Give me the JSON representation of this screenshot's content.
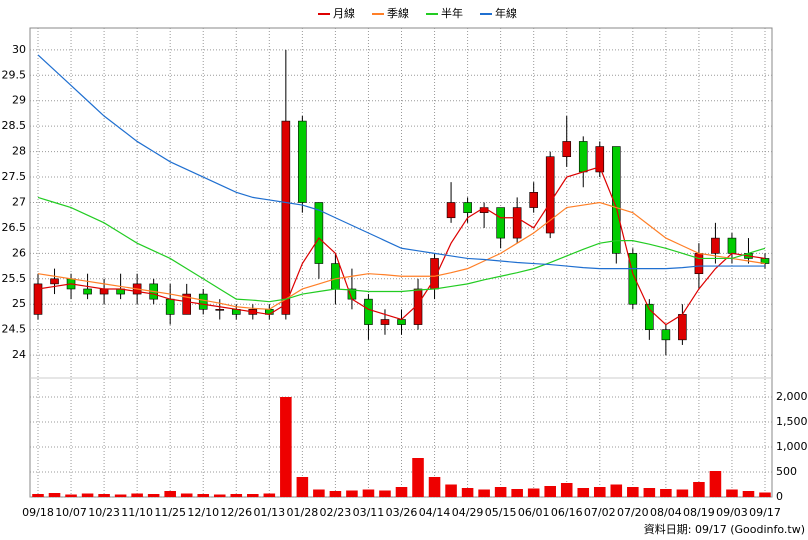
{
  "chart_data": {
    "type": "candlestick",
    "categories": [
      "09/18",
      null,
      "10/07",
      null,
      "10/23",
      null,
      "11/10",
      null,
      "11/25",
      null,
      "12/10",
      null,
      "12/26",
      null,
      "01/13",
      null,
      "01/28",
      null,
      "02/23",
      null,
      "03/11",
      null,
      "03/26",
      null,
      "04/14",
      null,
      "04/29",
      null,
      "05/15",
      null,
      "06/01",
      null,
      "06/16",
      null,
      "07/02",
      null,
      "07/20",
      null,
      "08/04",
      null,
      "08/19",
      null,
      "09/03",
      null,
      "09/17"
    ],
    "open": [
      24.8,
      25.4,
      25.5,
      25.3,
      25.2,
      25.3,
      25.2,
      25.4,
      25.1,
      24.8,
      25.2,
      24.9,
      24.9,
      24.8,
      24.9,
      24.8,
      28.6,
      27.0,
      25.8,
      25.3,
      25.1,
      24.6,
      24.7,
      24.6,
      25.3,
      26.7,
      27.0,
      26.8,
      26.9,
      26.3,
      26.9,
      26.4,
      27.9,
      28.2,
      27.6,
      28.1,
      26.0,
      25.0,
      24.5,
      24.3,
      25.6,
      26.0,
      26.3,
      26.0,
      25.9
    ],
    "high": [
      25.6,
      25.7,
      25.6,
      25.6,
      25.5,
      25.6,
      25.6,
      25.5,
      25.4,
      25.4,
      25.3,
      25.1,
      25.0,
      25.0,
      25.0,
      30.0,
      28.7,
      27.0,
      26.0,
      25.7,
      25.2,
      24.9,
      24.9,
      25.5,
      26.0,
      27.4,
      27.1,
      27.0,
      26.9,
      27.1,
      27.4,
      28.0,
      28.7,
      28.3,
      28.2,
      28.1,
      26.1,
      25.1,
      24.6,
      25.0,
      26.2,
      26.6,
      26.4,
      26.3,
      26.0
    ],
    "low": [
      24.7,
      25.2,
      25.1,
      25.1,
      25.0,
      25.1,
      25.0,
      25.0,
      24.6,
      24.8,
      24.8,
      24.7,
      24.7,
      24.7,
      24.7,
      24.7,
      26.8,
      25.5,
      25.0,
      24.9,
      24.3,
      24.4,
      24.4,
      24.5,
      25.1,
      26.6,
      26.6,
      26.5,
      26.1,
      26.2,
      26.8,
      26.3,
      27.7,
      27.3,
      27.5,
      25.8,
      24.9,
      24.3,
      24.0,
      24.2,
      25.3,
      25.8,
      25.8,
      25.8,
      25.7
    ],
    "close": [
      25.4,
      25.5,
      25.3,
      25.2,
      25.3,
      25.2,
      25.4,
      25.1,
      24.8,
      25.2,
      24.9,
      24.9,
      24.8,
      24.9,
      24.8,
      28.6,
      27.0,
      25.8,
      25.3,
      25.1,
      24.6,
      24.7,
      24.6,
      25.3,
      25.9,
      27.0,
      26.8,
      26.9,
      26.3,
      26.9,
      27.2,
      27.9,
      28.2,
      27.6,
      28.1,
      26.0,
      25.0,
      24.5,
      24.3,
      24.8,
      26.0,
      26.3,
      26.0,
      25.9,
      25.8
    ],
    "up_color": "#dd0000",
    "down_color": "#00cc00",
    "ylim": [
      23.55,
      30.43
    ],
    "yticks": [
      24,
      24.5,
      25,
      25.5,
      26,
      26.5,
      27,
      27.5,
      28,
      28.5,
      29,
      29.5,
      30
    ],
    "grid": true,
    "lines": [
      {
        "name": "月線",
        "color": "#dd0000",
        "values": [
          25.3,
          25.35,
          25.4,
          25.35,
          25.3,
          25.3,
          25.25,
          25.2,
          25.1,
          25.05,
          25.0,
          24.95,
          24.9,
          24.85,
          24.8,
          25.0,
          25.8,
          26.3,
          26.0,
          25.1,
          24.9,
          24.8,
          24.7,
          25.0,
          25.5,
          26.2,
          26.7,
          26.9,
          26.7,
          26.7,
          26.5,
          27.0,
          27.5,
          27.6,
          27.7,
          26.9,
          25.6,
          24.9,
          24.6,
          24.8,
          25.3,
          25.7,
          26.0,
          25.95,
          25.9
        ]
      },
      {
        "name": "季線",
        "color": "#ff7f27",
        "values": [
          25.6,
          25.55,
          25.5,
          25.45,
          25.4,
          25.35,
          25.3,
          25.25,
          25.2,
          25.14,
          25.08,
          25.02,
          24.95,
          24.92,
          24.9,
          25.1,
          25.3,
          25.4,
          25.5,
          25.55,
          25.6,
          25.58,
          25.55,
          25.55,
          25.55,
          25.62,
          25.7,
          25.85,
          26.0,
          26.2,
          26.4,
          26.65,
          26.9,
          26.95,
          27.0,
          26.9,
          26.8,
          26.55,
          26.3,
          26.15,
          26.0,
          25.95,
          25.9,
          25.85,
          25.8
        ]
      },
      {
        "name": "半年",
        "color": "#22cc22",
        "values": [
          27.1,
          27.0,
          26.9,
          26.75,
          26.6,
          26.4,
          26.2,
          26.05,
          25.9,
          25.7,
          25.5,
          25.3,
          25.1,
          25.08,
          25.05,
          25.1,
          25.2,
          25.25,
          25.3,
          25.28,
          25.25,
          25.25,
          25.25,
          25.28,
          25.3,
          25.35,
          25.4,
          25.48,
          25.55,
          25.62,
          25.7,
          25.82,
          25.95,
          26.08,
          26.2,
          26.25,
          26.25,
          26.18,
          26.1,
          26.0,
          25.9,
          25.9,
          25.9,
          26.0,
          26.1
        ]
      },
      {
        "name": "年線",
        "color": "#1f6fd0",
        "values": [
          29.9,
          29.6,
          29.3,
          29.0,
          28.7,
          28.45,
          28.2,
          28.0,
          27.8,
          27.65,
          27.5,
          27.35,
          27.2,
          27.1,
          27.05,
          27.0,
          26.95,
          26.85,
          26.7,
          26.55,
          26.4,
          26.25,
          26.1,
          26.05,
          26.0,
          25.95,
          25.9,
          25.88,
          25.85,
          25.82,
          25.8,
          25.78,
          25.75,
          25.72,
          25.7,
          25.7,
          25.7,
          25.7,
          25.7,
          25.72,
          25.75,
          25.75,
          25.75,
          25.75,
          25.75
        ]
      }
    ],
    "volume": {
      "color": "#ee0000",
      "values": [
        60,
        80,
        50,
        70,
        60,
        50,
        70,
        60,
        120,
        70,
        60,
        50,
        60,
        60,
        70,
        2000,
        400,
        150,
        120,
        130,
        150,
        130,
        200,
        780,
        400,
        250,
        180,
        150,
        200,
        160,
        170,
        220,
        280,
        180,
        200,
        250,
        200,
        180,
        160,
        150,
        300,
        520,
        150,
        120,
        90
      ],
      "ylim": [
        0,
        2380
      ],
      "yticks": [
        0,
        500,
        {
          "value": 1000,
          "label": "1,000"
        },
        {
          "value": 1500,
          "label": "1,500"
        },
        {
          "value": 2000,
          "label": "2,000"
        }
      ]
    },
    "source": "資料日期: 09/17 (Goodinfo.tw)"
  }
}
